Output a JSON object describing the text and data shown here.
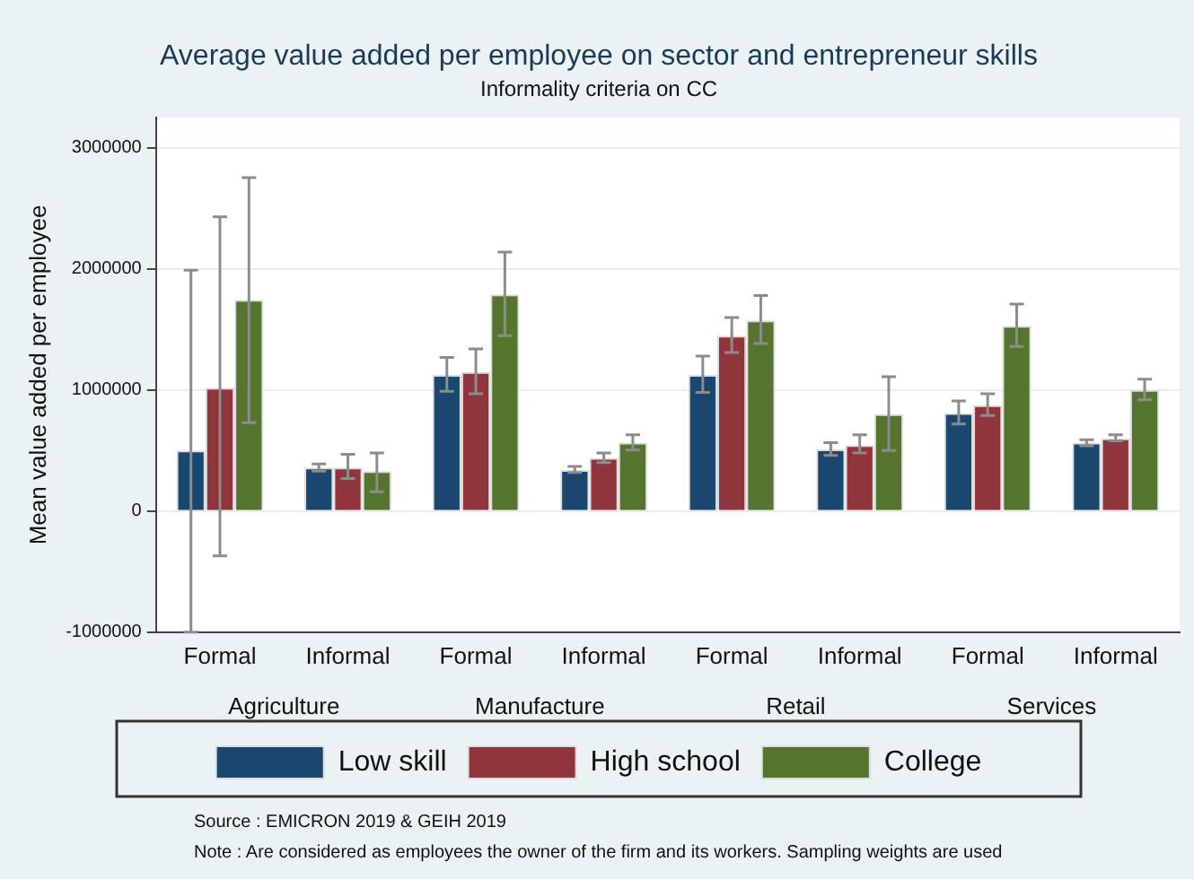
{
  "chart_data": {
    "type": "bar",
    "title": "Average value added per employee on sector and entrepreneur skills",
    "subtitle": "Informality criteria on CC",
    "ylabel": "Mean value added per employee",
    "categories": [
      "Formal",
      "Informal",
      "Formal",
      "Informal",
      "Formal",
      "Informal",
      "Formal",
      "Informal"
    ],
    "series": [
      {
        "name": "Low skill",
        "color": "#1a4770",
        "values": [
          500000,
          360000,
          1125000,
          340000,
          1125000,
          510000,
          810000,
          565000
        ],
        "errors": [
          [
            -1000000,
            1990000
          ],
          [
            330000,
            390000
          ],
          [
            990000,
            1270000
          ],
          [
            320000,
            370000
          ],
          [
            980000,
            1280000
          ],
          [
            460000,
            565000
          ],
          [
            720000,
            910000
          ],
          [
            540000,
            590000
          ]
        ]
      },
      {
        "name": "High school",
        "color": "#90353b",
        "values": [
          1020000,
          360000,
          1150000,
          440000,
          1450000,
          545000,
          875000,
          600000
        ],
        "errors": [
          [
            -370000,
            2430000
          ],
          [
            270000,
            470000
          ],
          [
            970000,
            1340000
          ],
          [
            400000,
            480000
          ],
          [
            1310000,
            1600000
          ],
          [
            480000,
            630000
          ],
          [
            790000,
            970000
          ],
          [
            580000,
            630000
          ]
        ]
      },
      {
        "name": "College",
        "color": "#55752f",
        "values": [
          1745000,
          330000,
          1790000,
          565000,
          1575000,
          800000,
          1530000,
          1000000
        ],
        "errors": [
          [
            730000,
            2755000
          ],
          [
            160000,
            480000
          ],
          [
            1450000,
            2140000
          ],
          [
            505000,
            630000
          ],
          [
            1385000,
            1780000
          ],
          [
            500000,
            1110000
          ],
          [
            1360000,
            1710000
          ],
          [
            920000,
            1090000
          ]
        ]
      }
    ],
    "ylim": [
      -1000000,
      3250000
    ],
    "yticks": [
      -1000000,
      0,
      1000000,
      2000000,
      3000000
    ],
    "grid": "y",
    "legend": "bottom",
    "annotations": [
      "Agriculture",
      "Manufacture",
      "Retail",
      "Services",
      "Source : EMICRON 2019 & GEIH 2019",
      "Note : Are considered as employees the owner of the firm and its workers. Sampling weights are used"
    ]
  }
}
